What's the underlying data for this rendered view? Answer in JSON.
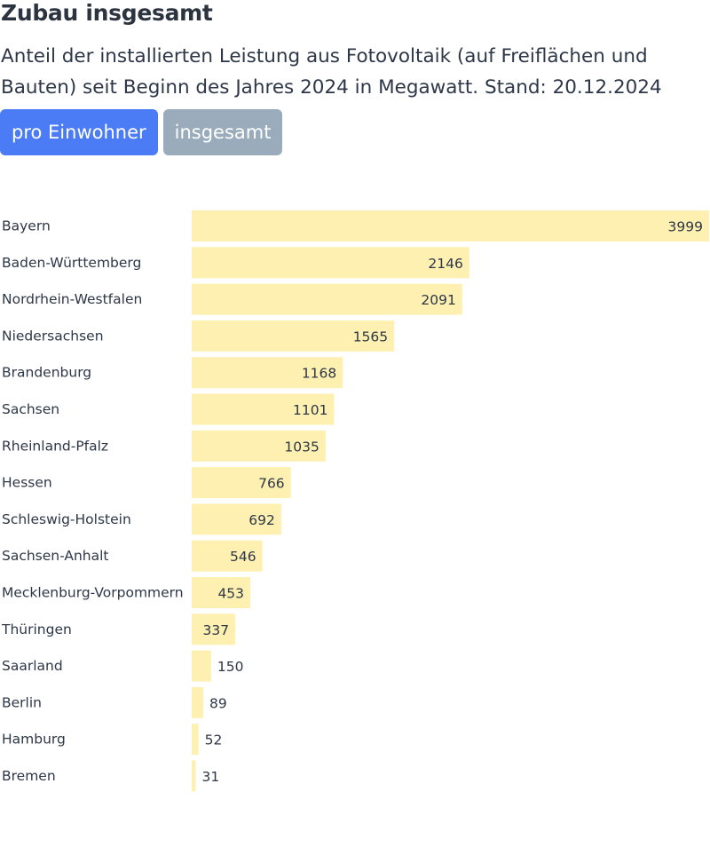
{
  "header": {
    "title": "Zubau insgesamt",
    "subtitle": "Anteil der installierten Leistung aus Fotovoltaik (auf Freiflächen und Bauten) seit Beginn des Jahres 2024 in Megawatt. Stand: 20.12.2024"
  },
  "toggle": {
    "per_capita_label": "pro Einwohner",
    "total_label": "insgesamt",
    "active": "pro Einwohner"
  },
  "colors": {
    "bar": "#fdf0b0",
    "active_button": "#4c7cf5",
    "inactive_button": "#9aacbc"
  },
  "chart_data": {
    "type": "bar",
    "orientation": "horizontal",
    "categories": [
      "Bayern",
      "Baden-Württemberg",
      "Nordrhein-Westfalen",
      "Niedersachsen",
      "Brandenburg",
      "Sachsen",
      "Rheinland-Pfalz",
      "Hessen",
      "Schleswig-Holstein",
      "Sachsen-Anhalt",
      "Mecklenburg-Vorpommern",
      "Thüringen",
      "Saarland",
      "Berlin",
      "Hamburg",
      "Bremen"
    ],
    "values": [
      3999,
      2146,
      2091,
      1565,
      1168,
      1101,
      1035,
      766,
      692,
      546,
      453,
      337,
      150,
      89,
      52,
      31
    ],
    "xlim": [
      0,
      3999
    ],
    "grid": false,
    "legend": "none"
  }
}
